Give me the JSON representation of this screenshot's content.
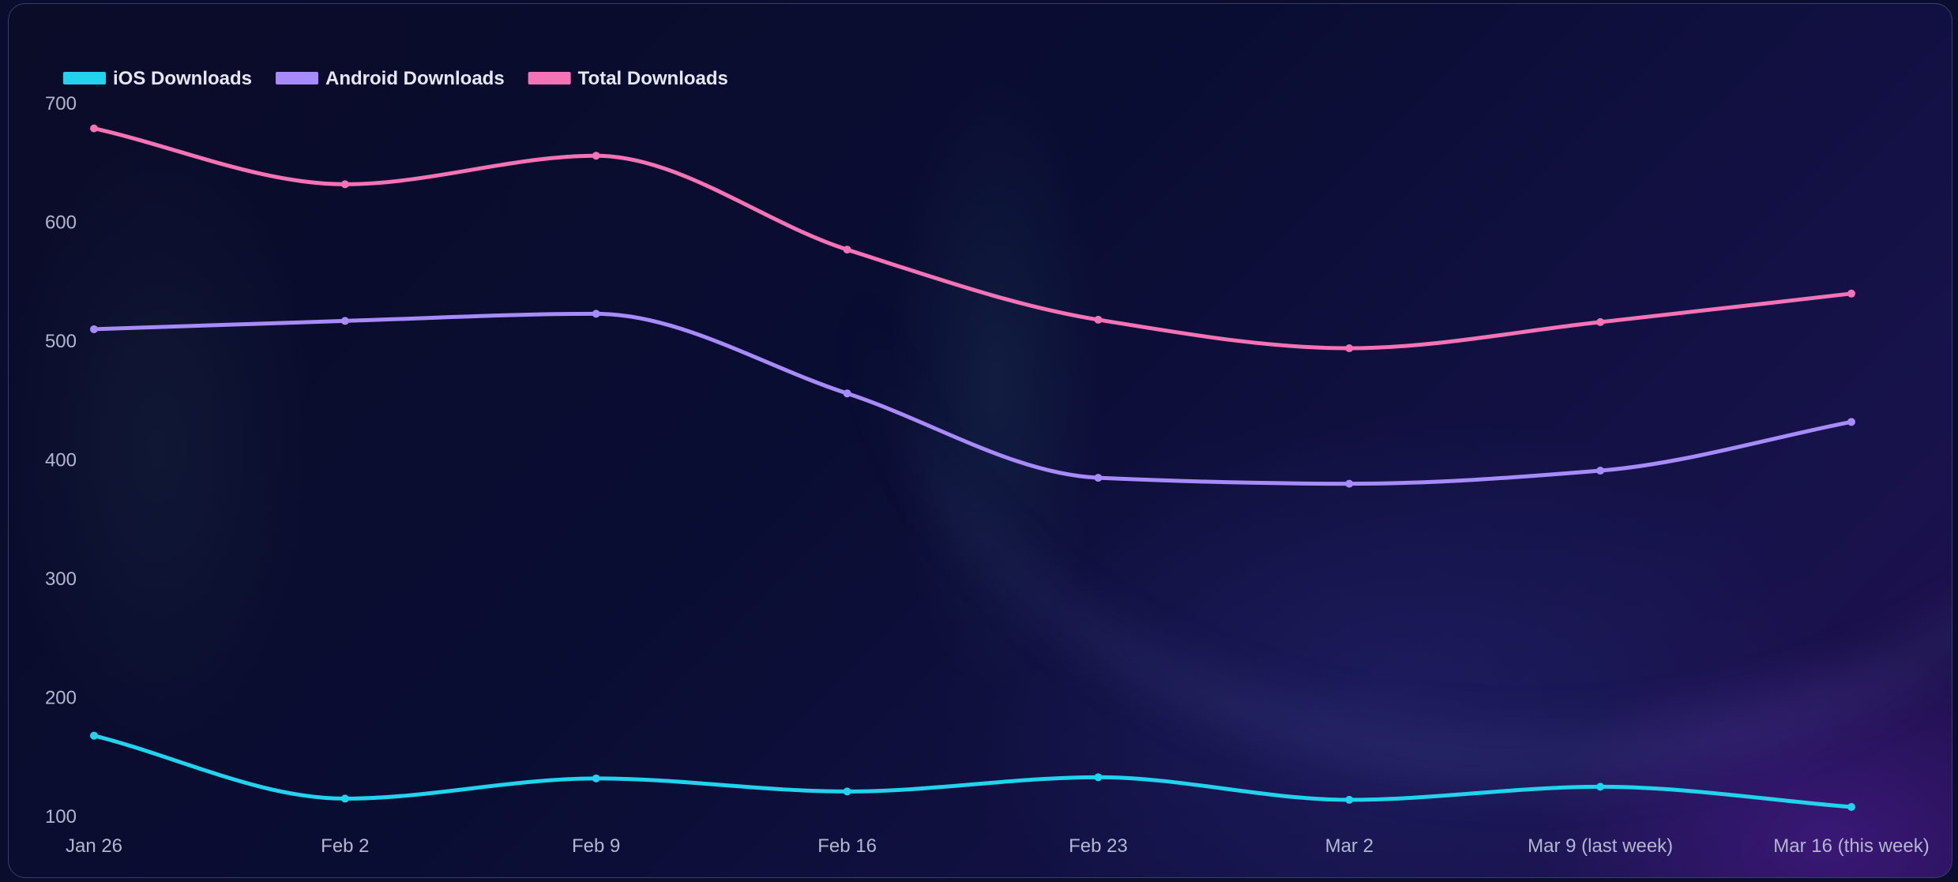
{
  "chart_data": {
    "type": "line",
    "title": "",
    "xlabel": "",
    "ylabel": "",
    "categories": [
      "Jan 26",
      "Feb 2",
      "Feb 9",
      "Feb 16",
      "Feb 23",
      "Mar 2",
      "Mar 9 (last week)",
      "Mar 16 (this week)"
    ],
    "ylim": [
      100,
      700
    ],
    "yticks": [
      100,
      200,
      300,
      400,
      500,
      600,
      700
    ],
    "grid": false,
    "legend_position": "top-left",
    "series": [
      {
        "name": "iOS Downloads",
        "color": "#22d3ee",
        "values": [
          168,
          115,
          132,
          121,
          133,
          114,
          125,
          108
        ]
      },
      {
        "name": "Android Downloads",
        "color": "#a78bfa",
        "values": [
          510,
          517,
          523,
          456,
          385,
          380,
          391,
          432
        ]
      },
      {
        "name": "Total Downloads",
        "color": "#f472b6",
        "values": [
          679,
          632,
          656,
          577,
          518,
          494,
          516,
          540
        ]
      }
    ]
  }
}
